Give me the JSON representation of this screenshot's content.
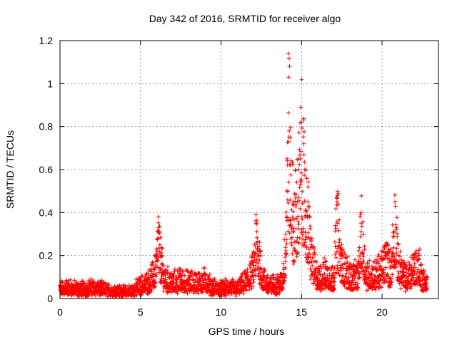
{
  "chart_data": {
    "type": "scatter",
    "title": "Day 342 of 2016, SRMTID for receiver algo",
    "xlabel": "GPS time / hours",
    "ylabel": "SRMTID / TECUs",
    "xlim": [
      0,
      23.5
    ],
    "ylim": [
      0,
      1.2
    ],
    "x_ticks": [
      0,
      5,
      10,
      15,
      20
    ],
    "x_tick_labels": [
      "0",
      "5",
      "10",
      "15",
      "20"
    ],
    "y_ticks": [
      0,
      0.2,
      0.4,
      0.6,
      0.8,
      1.0,
      1.2
    ],
    "y_tick_labels": [
      "0",
      "0.2",
      "0.4",
      "0.6",
      "0.8",
      "1",
      "1.2"
    ],
    "grid": true,
    "marker": "+",
    "color": "#ff0000",
    "data_extent_hours": [
      0,
      22.8
    ],
    "series": [
      {
        "name": "SRMTID",
        "description_points": {
          "x": [
            0.0,
            0.5,
            1.0,
            1.5,
            2.0,
            2.5,
            3.0,
            3.5,
            4.0,
            4.5,
            5.0,
            5.5,
            5.8,
            6.0,
            6.1,
            6.2,
            6.3,
            6.5,
            7.0,
            7.5,
            8.0,
            8.5,
            9.0,
            9.5,
            10.0,
            10.5,
            11.0,
            11.5,
            12.0,
            12.2,
            12.4,
            12.6,
            13.0,
            13.5,
            13.8,
            14.0,
            14.1,
            14.2,
            14.3,
            14.5,
            14.8,
            15.0,
            15.2,
            15.4,
            15.6,
            16.0,
            16.5,
            17.0,
            17.2,
            17.5,
            18.0,
            18.5,
            18.7,
            19.0,
            19.5,
            20.0,
            20.3,
            20.5,
            20.8,
            21.0,
            21.5,
            22.0,
            22.3,
            22.5,
            22.8
          ],
          "y": [
            0.06,
            0.07,
            0.06,
            0.06,
            0.07,
            0.06,
            0.05,
            0.05,
            0.04,
            0.05,
            0.08,
            0.1,
            0.14,
            0.2,
            0.38,
            0.25,
            0.2,
            0.12,
            0.1,
            0.11,
            0.1,
            0.1,
            0.11,
            0.07,
            0.06,
            0.07,
            0.06,
            0.1,
            0.17,
            0.35,
            0.22,
            0.12,
            0.08,
            0.09,
            0.1,
            0.3,
            0.65,
            1.03,
            0.75,
            0.45,
            0.6,
            0.82,
            0.6,
            0.45,
            0.25,
            0.12,
            0.15,
            0.12,
            0.45,
            0.2,
            0.14,
            0.13,
            0.4,
            0.15,
            0.14,
            0.18,
            0.25,
            0.15,
            0.45,
            0.2,
            0.12,
            0.19,
            0.2,
            0.12,
            0.1
          ]
        }
      }
    ]
  }
}
